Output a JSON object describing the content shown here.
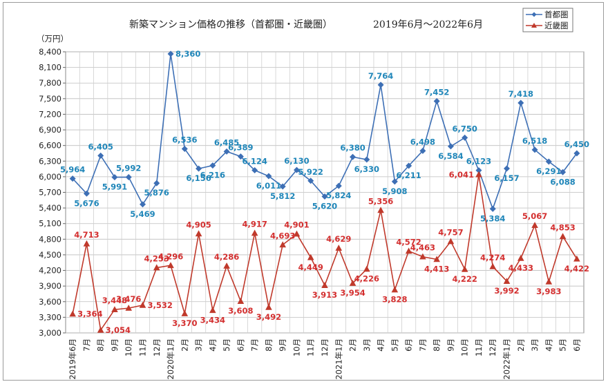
{
  "chart_data": {
    "type": "line",
    "title": "新築マンション価格の推移（首都圏・近畿圏）",
    "subtitle": "2019年6月～2022年6月",
    "ylabel": "（万円）",
    "ylim": [
      3000,
      8400
    ],
    "ystep": 300,
    "grid": true,
    "legend_placement": "top-right",
    "categories": [
      "2019年6月",
      "7月",
      "8月",
      "9月",
      "10月",
      "11月",
      "12月",
      "2020年1月",
      "2月",
      "3月",
      "4月",
      "5月",
      "6月",
      "7月",
      "8月",
      "9月",
      "10月",
      "11月",
      "12月",
      "2021年1月",
      "2月",
      "3月",
      "4月",
      "5月",
      "6月",
      "7月",
      "8月",
      "9月",
      "10月",
      "11月",
      "12月",
      "2022年1月",
      "2月",
      "3月",
      "4月",
      "5月",
      "6月"
    ],
    "series": [
      {
        "name": "首都圏",
        "color": "#3d6fb5",
        "marker": "diamond",
        "values": [
          5964,
          5676,
          6405,
          5991,
          5992,
          5469,
          5876,
          8360,
          6536,
          6156,
          6216,
          6485,
          6389,
          6124,
          6011,
          5812,
          6130,
          5922,
          5620,
          5824,
          6380,
          6330,
          7764,
          5908,
          6211,
          6498,
          7452,
          6584,
          6750,
          6123,
          5384,
          6157,
          7418,
          6518,
          6291,
          6088,
          6450
        ],
        "label_pos": [
          "a",
          "b",
          "a",
          "b",
          "a",
          "b",
          "b",
          "r",
          "a",
          "b",
          "b",
          "a",
          "a",
          "a",
          "b",
          "b",
          "a",
          "a",
          "b",
          "b",
          "a",
          "b",
          "a",
          "b",
          "b",
          "a",
          "a",
          "b",
          "a",
          "a",
          "b",
          "b",
          "a",
          "a",
          "b",
          "b",
          "a"
        ]
      },
      {
        "name": "近畿圏",
        "color": "#c0392b",
        "marker": "triangle",
        "values": [
          3364,
          4713,
          3054,
          3448,
          3476,
          3532,
          4253,
          4296,
          3370,
          4905,
          3434,
          4286,
          3608,
          4917,
          3492,
          4693,
          4901,
          4449,
          3913,
          4629,
          3954,
          4226,
          5356,
          3828,
          4572,
          4463,
          4413,
          4757,
          4222,
          6041,
          4274,
          3992,
          4433,
          5067,
          3983,
          4853,
          4422
        ],
        "label_pos": [
          "r",
          "a",
          "r",
          "a",
          "a",
          "r",
          "a",
          "a",
          "b",
          "a",
          "b",
          "a",
          "b",
          "a",
          "b",
          "a",
          "a",
          "b",
          "b",
          "a",
          "b",
          "b",
          "a",
          "b",
          "a",
          "a",
          "b",
          "a",
          "b",
          "l",
          "a",
          "b",
          "b",
          "a",
          "b",
          "a",
          "b"
        ]
      }
    ]
  }
}
